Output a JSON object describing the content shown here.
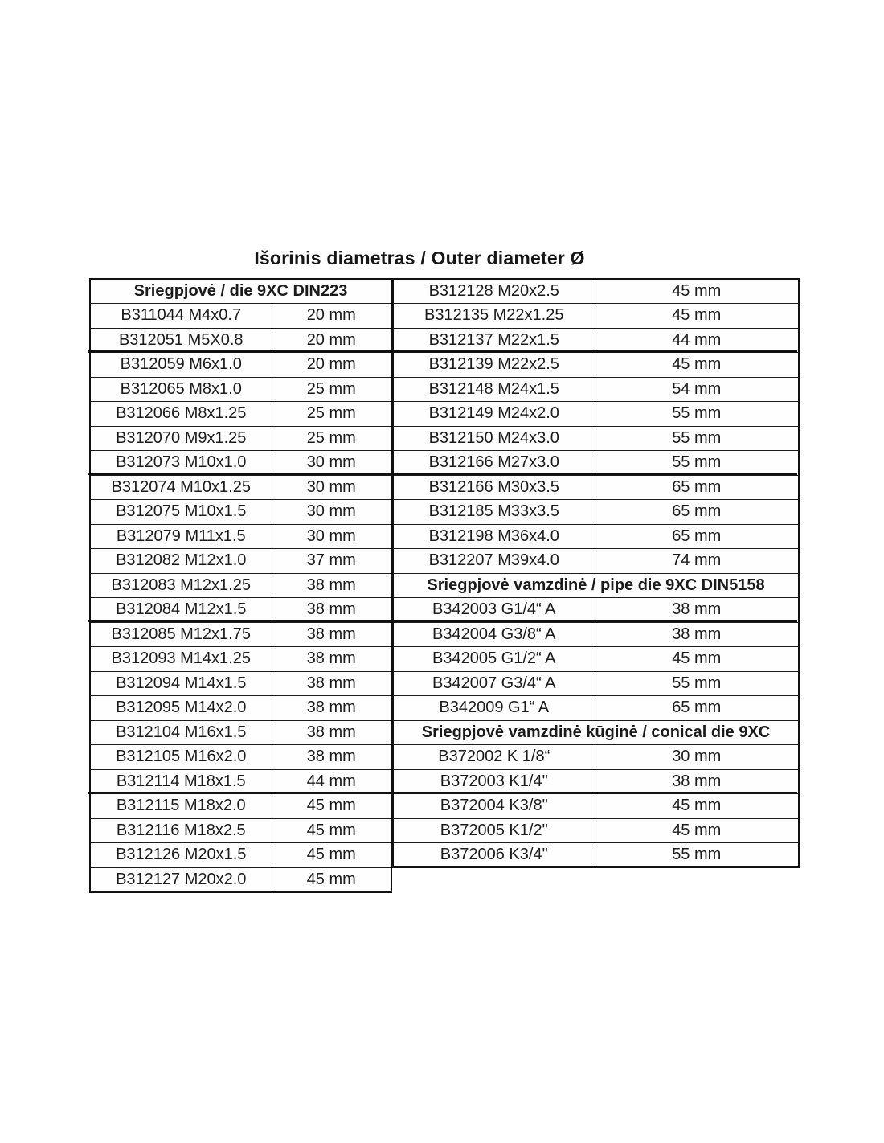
{
  "page": {
    "title": "Išorinis diametras / Outer diameter Ø"
  },
  "colors": {
    "text": "#1a1a1a",
    "border": "#1c1c1c",
    "background": "#ffffff"
  },
  "left_table": {
    "header": "Sriegpjovė / die 9XC DIN223",
    "rows": [
      {
        "code": "B311044 M4x0.7",
        "diameter": "20 mm"
      },
      {
        "code": "B312051 M5X0.8",
        "diameter": "20 mm"
      },
      {
        "code": "B312059 M6x1.0",
        "diameter": "20 mm"
      },
      {
        "code": "B312065 M8x1.0",
        "diameter": "25 mm"
      },
      {
        "code": "B312066 M8x1.25",
        "diameter": "25 mm"
      },
      {
        "code": "B312070 M9x1.25",
        "diameter": "25 mm"
      },
      {
        "code": "B312073 M10x1.0",
        "diameter": "30 mm"
      },
      {
        "code": "B312074 M10x1.25",
        "diameter": "30 mm"
      },
      {
        "code": "B312075 M10x1.5",
        "diameter": "30 mm"
      },
      {
        "code": "B312079 M11x1.5",
        "diameter": "30 mm"
      },
      {
        "code": "B312082 M12x1.0",
        "diameter": "37 mm"
      },
      {
        "code": "B312083 M12x1.25",
        "diameter": "38 mm"
      },
      {
        "code": "B312084 M12x1.5",
        "diameter": "38 mm"
      },
      {
        "code": "B312085 M12x1.75",
        "diameter": "38 mm"
      },
      {
        "code": "B312093 M14x1.25",
        "diameter": "38 mm"
      },
      {
        "code": "B312094 M14x1.5",
        "diameter": "38 mm"
      },
      {
        "code": "B312095 M14x2.0",
        "diameter": "38 mm"
      },
      {
        "code": "B312104 M16x1.5",
        "diameter": "38 mm"
      },
      {
        "code": "B312105 M16x2.0",
        "diameter": "38 mm"
      },
      {
        "code": "B312114 M18x1.5",
        "diameter": "44 mm"
      },
      {
        "code": "B312115 M18x2.0",
        "diameter": "45 mm"
      },
      {
        "code": "B312116 M18x2.5",
        "diameter": "45 mm"
      },
      {
        "code": "B312126 M20x1.5",
        "diameter": "45 mm"
      },
      {
        "code": "B312127 M20x2.0",
        "diameter": "45 mm"
      }
    ]
  },
  "right_table": {
    "rows": [
      {
        "type": "data",
        "code": "B312128 M20x2.5",
        "diameter": "45 mm"
      },
      {
        "type": "data",
        "code": "B312135 M22x1.25",
        "diameter": "45 mm"
      },
      {
        "type": "data",
        "code": "B312137 M22x1.5",
        "diameter": "44 mm"
      },
      {
        "type": "data",
        "code": "B312139 M22x2.5",
        "diameter": "45 mm"
      },
      {
        "type": "data",
        "code": "B312148 M24x1.5",
        "diameter": "54 mm"
      },
      {
        "type": "data",
        "code": "B312149 M24x2.0",
        "diameter": "55 mm"
      },
      {
        "type": "data",
        "code": "B312150 M24x3.0",
        "diameter": "55 mm"
      },
      {
        "type": "data",
        "code": "B312166 M27x3.0",
        "diameter": "55 mm"
      },
      {
        "type": "data",
        "code": "B312166 M30x3.5",
        "diameter": "65 mm"
      },
      {
        "type": "data",
        "code": "B312185 M33x3.5",
        "diameter": "65 mm"
      },
      {
        "type": "data",
        "code": "B312198 M36x4.0",
        "diameter": "65 mm"
      },
      {
        "type": "data",
        "code": "B312207 M39x4.0",
        "diameter": "74 mm"
      },
      {
        "type": "header",
        "label": "Sriegpjovė vamzdinė / pipe die 9XC DIN5158"
      },
      {
        "type": "data",
        "code": "B342003 G1/4“ A",
        "diameter": "38 mm"
      },
      {
        "type": "data",
        "code": "B342004 G3/8“ A",
        "diameter": "38 mm"
      },
      {
        "type": "data",
        "code": "B342005 G1/2“ A",
        "diameter": "45 mm"
      },
      {
        "type": "data",
        "code": "B342007 G3/4“ A",
        "diameter": "55 mm"
      },
      {
        "type": "data",
        "code": "B342009 G1“ A",
        "diameter": "65 mm"
      },
      {
        "type": "header",
        "label": "Sriegpjovė vamzdinė kūginė / conical die 9XC"
      },
      {
        "type": "data",
        "code": "B372002 K 1/8“",
        "diameter": "30 mm"
      },
      {
        "type": "data",
        "code": "B372003 K1/4\"",
        "diameter": "38 mm"
      },
      {
        "type": "data",
        "code": "B372004 K3/8\"",
        "diameter": "45 mm"
      },
      {
        "type": "data",
        "code": "B372005 K1/2\"",
        "diameter": "45 mm"
      },
      {
        "type": "data",
        "code": "B372006 K3/4\"",
        "diameter": "55 mm"
      }
    ]
  }
}
